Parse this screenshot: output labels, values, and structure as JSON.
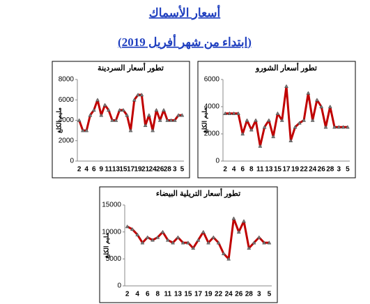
{
  "header": {
    "title": "أسعار الأسماك",
    "subtitle": "(ابتداء من شهر أفريل 2019)"
  },
  "chart_data": [
    {
      "type": "line",
      "title": "تطور أسعار السردينة",
      "y_label": "مليم الكلغ",
      "color": "#c00000",
      "categories": [
        "2",
        null,
        "4",
        null,
        "6",
        null,
        "9",
        null,
        "11",
        null,
        "13",
        null,
        "15",
        null,
        "17",
        null,
        "19",
        null,
        "21",
        null,
        "24",
        null,
        "26",
        null,
        "28",
        null,
        "3",
        null,
        "5"
      ],
      "values": [
        4000,
        3000,
        3000,
        4500,
        5000,
        6000,
        4500,
        5500,
        5000,
        4000,
        4000,
        5000,
        5000,
        4500,
        3000,
        6000,
        6500,
        6500,
        3500,
        4500,
        3000,
        5000,
        4000,
        5000,
        4000,
        4000,
        4000,
        4500,
        4500
      ],
      "ylim": [
        0,
        8000
      ],
      "yticks": [
        0,
        2000,
        4000,
        6000,
        8000
      ]
    },
    {
      "type": "line",
      "title": "تطور أسعار الشورو",
      "y_label": "مليم الكلغ",
      "color": "#c00000",
      "categories": [
        "2",
        null,
        "4",
        null,
        "6",
        null,
        "8",
        null,
        "11",
        null,
        "13",
        null,
        "15",
        null,
        "17",
        null,
        "19",
        null,
        "22",
        null,
        "24",
        null,
        "26",
        null,
        "28",
        null,
        "3",
        null,
        "5"
      ],
      "values": [
        3500,
        3500,
        3500,
        3500,
        2000,
        3000,
        2300,
        3000,
        1100,
        2500,
        3000,
        1800,
        3500,
        3000,
        5500,
        1500,
        2500,
        2800,
        3000,
        5000,
        3000,
        4500,
        4000,
        2500,
        4000,
        2500,
        2500,
        2500,
        2500
      ],
      "ylim": [
        0,
        6000
      ],
      "yticks": [
        0,
        2000,
        4000,
        6000
      ]
    },
    {
      "type": "line",
      "title": "تطور أسعار التريلية البيضاء",
      "y_label": "مليم الكلغ",
      "color": "#c00000",
      "categories": [
        "2",
        null,
        "4",
        null,
        "6",
        null,
        "8",
        null,
        "11",
        null,
        "13",
        null,
        "15",
        null,
        "17",
        null,
        "19",
        null,
        "22",
        null,
        "24",
        null,
        "26",
        null,
        "28",
        null,
        "3",
        null,
        "5"
      ],
      "values": [
        11000,
        10500,
        9500,
        8000,
        9000,
        8500,
        9000,
        10000,
        8500,
        8000,
        9000,
        8000,
        8000,
        7000,
        8500,
        10000,
        8000,
        9000,
        8000,
        6000,
        5000,
        12500,
        10000,
        12000,
        7000,
        8000,
        9000,
        8000,
        8000
      ],
      "ylim": [
        0,
        15000
      ],
      "yticks": [
        0,
        5000,
        10000,
        15000
      ]
    }
  ]
}
